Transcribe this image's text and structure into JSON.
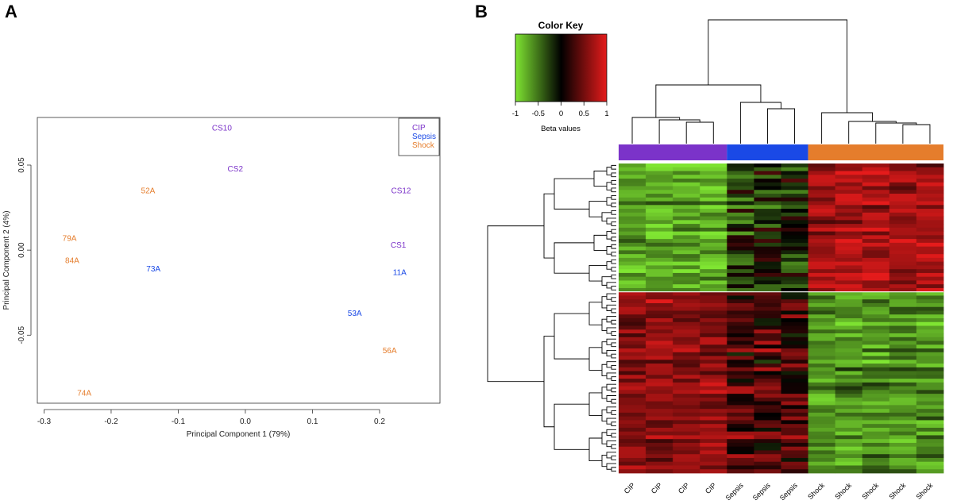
{
  "panels": {
    "a": "A",
    "b": "B"
  },
  "colors": {
    "CIP": "#7b33c9",
    "Sepsis": "#1a49e6",
    "Shock": "#e57d2c"
  },
  "chart_data": [
    {
      "type": "scatter",
      "xlabel": "Principal Component 1 (79%)",
      "ylabel": "Principal Component 2 (4%)",
      "xlim": [
        -0.31,
        0.29
      ],
      "ylim": [
        -0.09,
        0.078
      ],
      "xticks": [
        -0.3,
        -0.2,
        -0.1,
        0.0,
        0.1,
        0.2
      ],
      "xtick_labels": [
        "-0.3",
        "-0.2",
        "-0.1",
        "0.0",
        "0.1",
        "0.2"
      ],
      "yticks": [
        0.05,
        0.0,
        -0.05
      ],
      "ytick_labels": [
        "0.05",
        "0.00",
        "-0.05"
      ],
      "legend": {
        "position": "top-right",
        "entries": [
          {
            "label": "CIP",
            "group": "CIP"
          },
          {
            "label": "Sepsis",
            "group": "Sepsis"
          },
          {
            "label": "Shock",
            "group": "Shock"
          }
        ]
      },
      "points": [
        {
          "label": "CS10",
          "x": -0.035,
          "y": 0.072,
          "group": "CIP"
        },
        {
          "label": "CS2",
          "x": -0.015,
          "y": 0.048,
          "group": "CIP"
        },
        {
          "label": "52A",
          "x": -0.145,
          "y": 0.035,
          "group": "Shock"
        },
        {
          "label": "CS12",
          "x": 0.232,
          "y": 0.035,
          "group": "CIP"
        },
        {
          "label": "79A",
          "x": -0.262,
          "y": 0.007,
          "group": "Shock"
        },
        {
          "label": "CS1",
          "x": 0.228,
          "y": 0.003,
          "group": "CIP"
        },
        {
          "label": "84A",
          "x": -0.258,
          "y": -0.006,
          "group": "Shock"
        },
        {
          "label": "73A",
          "x": -0.137,
          "y": -0.011,
          "group": "Sepsis"
        },
        {
          "label": "11A",
          "x": 0.23,
          "y": -0.013,
          "group": "Sepsis"
        },
        {
          "label": "53A",
          "x": 0.163,
          "y": -0.037,
          "group": "Sepsis"
        },
        {
          "label": "56A",
          "x": 0.215,
          "y": -0.059,
          "group": "Shock"
        },
        {
          "label": "74A",
          "x": -0.24,
          "y": -0.084,
          "group": "Shock"
        }
      ]
    },
    {
      "type": "heatmap",
      "key_title": "Color Key",
      "key_label": "Beta values",
      "key_range": [
        -1,
        1
      ],
      "key_ticks": [
        "-1",
        "-0.5",
        "0",
        "0.5",
        "1"
      ],
      "key_colors": [
        "#7fe532",
        "#000000",
        "#e51b1b"
      ],
      "columns": [
        "CIP",
        "CIP",
        "CIP",
        "CIP",
        "Sepsis",
        "Sepsis",
        "Sepsis",
        "Shock",
        "Shock",
        "Shock",
        "Shock",
        "Shock"
      ],
      "column_groups": [
        "CIP",
        "CIP",
        "CIP",
        "CIP",
        "Sepsis",
        "Sepsis",
        "Sepsis",
        "Shock",
        "Shock",
        "Shock",
        "Shock",
        "Shock"
      ],
      "row_clusters": [
        {
          "rows": 34,
          "pattern": {
            "CIP": -0.72,
            "Sepsis": -0.2,
            "Shock": 0.72
          }
        },
        {
          "rows": 48,
          "pattern": {
            "CIP": 0.62,
            "Sepsis": 0.32,
            "Shock": -0.62
          }
        }
      ]
    }
  ]
}
